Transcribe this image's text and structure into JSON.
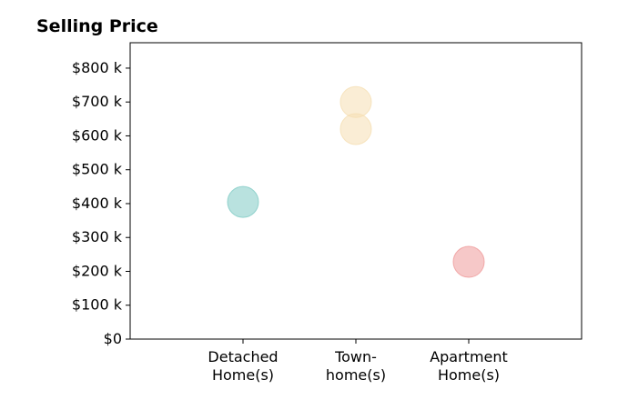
{
  "chart_data": {
    "type": "scatter",
    "title": "Selling Price",
    "xlabel": "",
    "ylabel": "",
    "categories": [
      [
        "Detached",
        "Home(s)"
      ],
      [
        "Town-",
        "home(s)"
      ],
      [
        "Apartment",
        "Home(s)"
      ]
    ],
    "ylim": [
      0,
      875000
    ],
    "yticks": [
      0,
      100000,
      200000,
      300000,
      400000,
      500000,
      600000,
      700000,
      800000
    ],
    "ytick_labels": [
      "$0",
      "$100 k",
      "$200 k",
      "$300 k",
      "$400 k",
      "$500 k",
      "$600 k",
      "$700 k",
      "$800 k"
    ],
    "grid": false,
    "points": [
      {
        "category": 0,
        "value": 405000,
        "color": "#80cbc4"
      },
      {
        "category": 1,
        "value": 620000,
        "color": "#f5deb3"
      },
      {
        "category": 1,
        "value": 700000,
        "color": "#f5deb3"
      },
      {
        "category": 2,
        "value": 228000,
        "color": "#ef9a9a"
      }
    ]
  }
}
